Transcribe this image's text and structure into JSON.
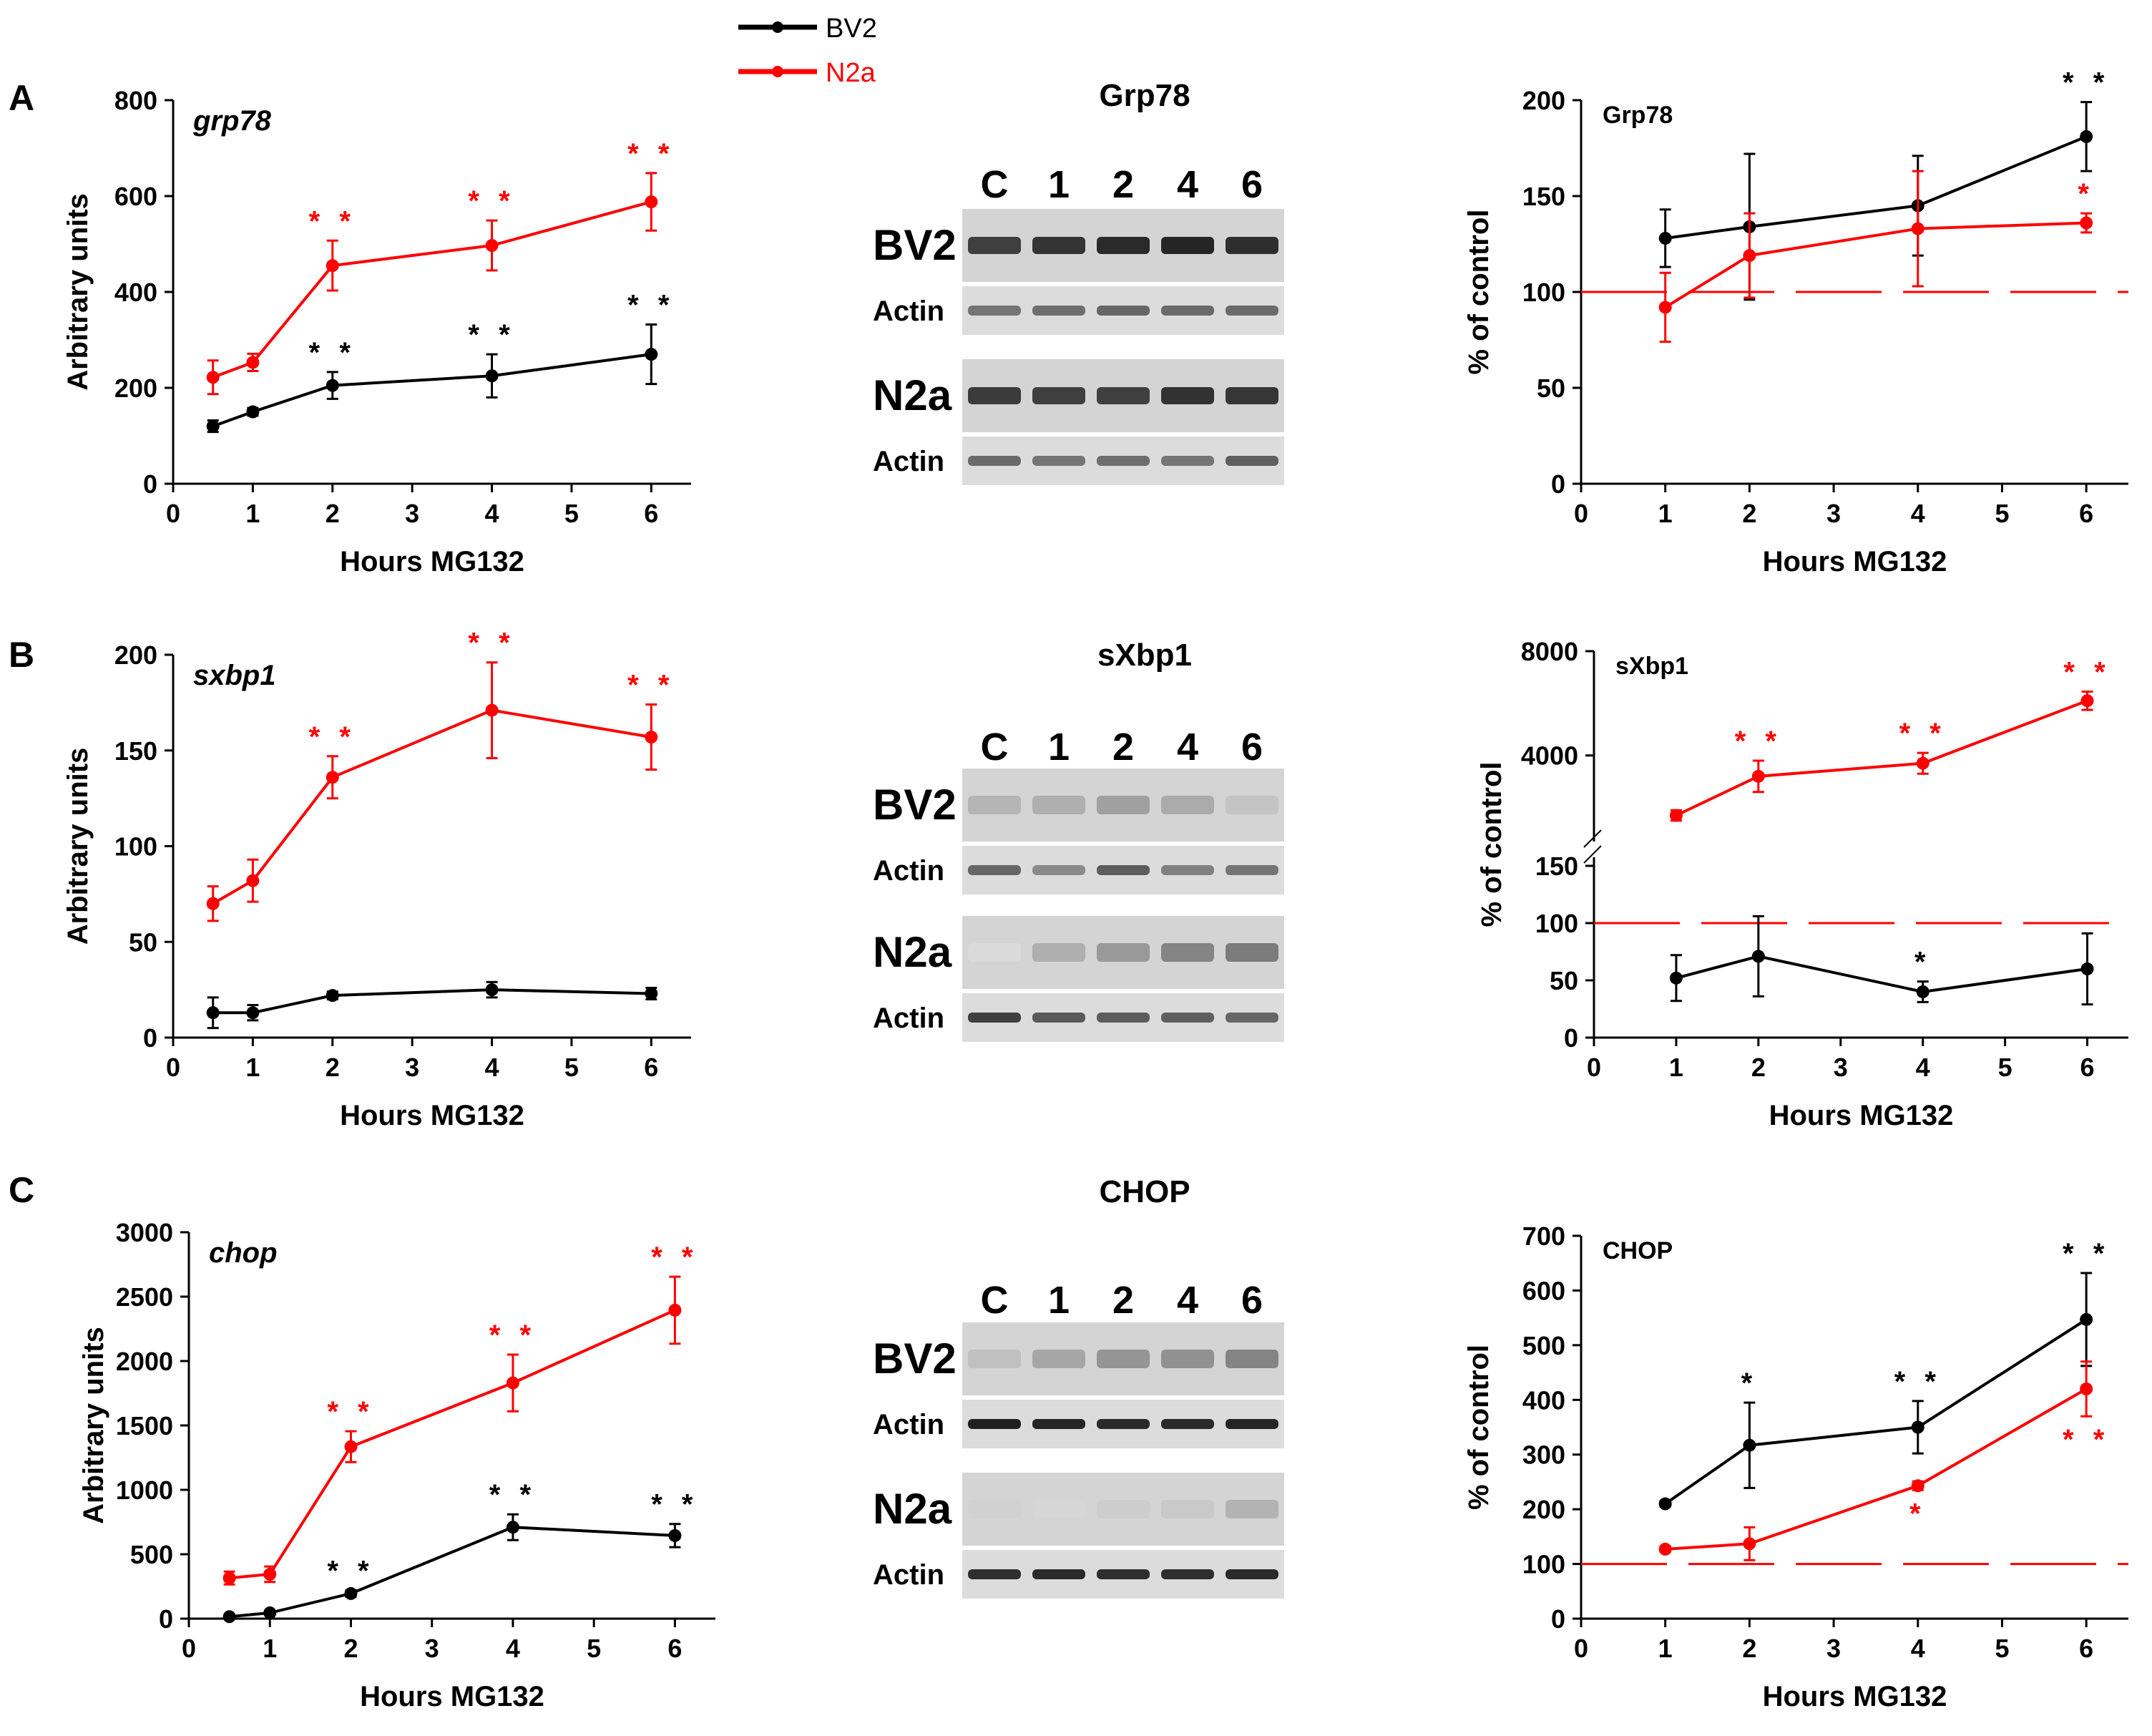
{
  "legend": {
    "items": [
      {
        "name": "BV2",
        "color": "#000000"
      },
      {
        "name": "N2a",
        "color": "#ff0000"
      }
    ]
  },
  "colors": {
    "bv2": "#000000",
    "n2a": "#ff0000"
  },
  "panels": [
    {
      "letter": "A",
      "blot": {
        "title": "Grp78",
        "lanes": [
          "C",
          "1",
          "2",
          "4",
          "6"
        ],
        "rows": [
          {
            "label": "BV2",
            "kind": "target",
            "intensity": [
              0.8,
              0.85,
              0.9,
              0.92,
              0.88
            ]
          },
          {
            "label": "Actin",
            "kind": "actin",
            "intensity": [
              0.55,
              0.58,
              0.62,
              0.6,
              0.6
            ]
          },
          {
            "label": "N2a",
            "kind": "target",
            "intensity": [
              0.82,
              0.8,
              0.8,
              0.86,
              0.84
            ]
          },
          {
            "label": "Actin",
            "kind": "actin",
            "intensity": [
              0.6,
              0.55,
              0.58,
              0.55,
              0.65
            ]
          }
        ]
      }
    },
    {
      "letter": "B",
      "blot": {
        "title": "sXbp1",
        "lanes": [
          "C",
          "1",
          "2",
          "4",
          "6"
        ],
        "rows": [
          {
            "label": "BV2",
            "kind": "faint",
            "intensity": [
              0.25,
              0.28,
              0.35,
              0.3,
              0.18
            ]
          },
          {
            "label": "Actin",
            "kind": "actin",
            "intensity": [
              0.62,
              0.45,
              0.66,
              0.5,
              0.55
            ]
          },
          {
            "label": "N2a",
            "kind": "faint",
            "intensity": [
              0.08,
              0.28,
              0.38,
              0.48,
              0.52
            ]
          },
          {
            "label": "Actin",
            "kind": "actin",
            "intensity": [
              0.8,
              0.68,
              0.66,
              0.65,
              0.62
            ]
          }
        ]
      }
    },
    {
      "letter": "C",
      "blot": {
        "title": "CHOP",
        "lanes": [
          "C",
          "1",
          "2",
          "4",
          "6"
        ],
        "rows": [
          {
            "label": "BV2",
            "kind": "faint",
            "intensity": [
              0.2,
              0.32,
              0.4,
              0.42,
              0.48
            ]
          },
          {
            "label": "Actin",
            "kind": "actin",
            "intensity": [
              0.95,
              0.92,
              0.9,
              0.9,
              0.92
            ]
          },
          {
            "label": "N2a",
            "kind": "faint",
            "intensity": [
              0.12,
              0.1,
              0.14,
              0.16,
              0.26
            ]
          },
          {
            "label": "Actin",
            "kind": "actin",
            "intensity": [
              0.88,
              0.9,
              0.88,
              0.88,
              0.9
            ]
          }
        ]
      }
    }
  ],
  "chart_data": [
    {
      "id": "A-mrna",
      "type": "line",
      "title": "grp78",
      "xlabel": "Hours MG132",
      "ylabel": "Arbitrary units",
      "xlim": [
        0,
        6.5
      ],
      "ylim": [
        0,
        800
      ],
      "xticks": [
        "0",
        "1",
        "2",
        "3",
        "4",
        "5",
        "6"
      ],
      "yticks": [
        "0",
        "200",
        "400",
        "600",
        "800"
      ],
      "series": [
        {
          "name": "BV2",
          "x": [
            0.5,
            1,
            2,
            4,
            6
          ],
          "y": [
            120,
            150,
            205,
            225,
            270
          ],
          "err": [
            12,
            8,
            28,
            45,
            62
          ],
          "stars": [
            "",
            "",
            "**",
            "**",
            "**"
          ]
        },
        {
          "name": "N2a",
          "x": [
            0.5,
            1,
            2,
            4,
            6
          ],
          "y": [
            222,
            253,
            455,
            497,
            588
          ],
          "err": [
            35,
            18,
            52,
            52,
            60
          ],
          "stars": [
            "",
            "",
            "**",
            "**",
            "**"
          ]
        }
      ]
    },
    {
      "id": "A-protein",
      "type": "line",
      "title": "Grp78",
      "xlabel": "Hours MG132",
      "ylabel": "% of control",
      "xlim": [
        0,
        6.5
      ],
      "ylim": [
        0,
        200
      ],
      "xticks": [
        "0",
        "1",
        "2",
        "3",
        "4",
        "5",
        "6"
      ],
      "yticks": [
        "0",
        "50",
        "100",
        "150",
        "200"
      ],
      "reference_line": 100,
      "series": [
        {
          "name": "BV2",
          "x": [
            1,
            2,
            4,
            6
          ],
          "y": [
            128,
            134,
            145,
            181
          ],
          "err": [
            15,
            38,
            26,
            18
          ],
          "stars": [
            "",
            "",
            "",
            "**"
          ]
        },
        {
          "name": "N2a",
          "x": [
            1,
            2,
            4,
            6
          ],
          "y": [
            92,
            119,
            133,
            136
          ],
          "err": [
            18,
            22,
            30,
            5
          ],
          "stars": [
            "",
            "",
            "",
            "*"
          ]
        }
      ]
    },
    {
      "id": "B-mrna",
      "type": "line",
      "title": "sxbp1",
      "xlabel": "Hours MG132",
      "ylabel": "Arbitrary units",
      "xlim": [
        0,
        6.5
      ],
      "ylim": [
        0,
        200
      ],
      "xticks": [
        "0",
        "1",
        "2",
        "3",
        "4",
        "5",
        "6"
      ],
      "yticks": [
        "0",
        "50",
        "100",
        "150",
        "200"
      ],
      "series": [
        {
          "name": "BV2",
          "x": [
            0.5,
            1,
            2,
            4,
            6
          ],
          "y": [
            13,
            13,
            22,
            25,
            23
          ],
          "err": [
            8,
            4,
            2,
            4,
            3
          ],
          "stars": [
            "",
            "",
            "",
            "",
            ""
          ]
        },
        {
          "name": "N2a",
          "x": [
            0.5,
            1,
            2,
            4,
            6
          ],
          "y": [
            70,
            82,
            136,
            171,
            157
          ],
          "err": [
            9,
            11,
            11,
            25,
            17
          ],
          "stars": [
            "",
            "",
            "**",
            "**",
            "**"
          ]
        }
      ]
    },
    {
      "id": "B-protein",
      "type": "line",
      "title": "sXbp1",
      "xlabel": "Hours MG132",
      "ylabel": "% of control",
      "xlim": [
        0,
        6.5
      ],
      "ylim": [
        0,
        8000
      ],
      "axis_break": [
        150,
        1000
      ],
      "xticks": [
        "0",
        "1",
        "2",
        "3",
        "4",
        "5",
        "6"
      ],
      "yticks": [
        "0",
        "50",
        "100",
        "150",
        "4000",
        "8000"
      ],
      "reference_line": 100,
      "series": [
        {
          "name": "BV2",
          "x": [
            1,
            2,
            4,
            6
          ],
          "y": [
            52,
            71,
            40,
            60
          ],
          "err": [
            20,
            35,
            9,
            31
          ],
          "stars": [
            "",
            "",
            "*",
            ""
          ]
        },
        {
          "name": "N2a",
          "x": [
            1,
            2,
            4,
            6
          ],
          "y": [
            1700,
            3200,
            3700,
            6100
          ],
          "err": [
            200,
            600,
            400,
            350
          ],
          "stars": [
            "",
            "**",
            "**",
            "**"
          ]
        }
      ]
    },
    {
      "id": "C-mrna",
      "type": "line",
      "title": "chop",
      "xlabel": "Hours MG132",
      "ylabel": "Arbitrary units",
      "xlim": [
        0,
        6.5
      ],
      "ylim": [
        0,
        3000
      ],
      "xticks": [
        "0",
        "1",
        "2",
        "3",
        "4",
        "5",
        "6"
      ],
      "yticks": [
        "0",
        "500",
        "1000",
        "1500",
        "2000",
        "2500",
        "3000"
      ],
      "series": [
        {
          "name": "BV2",
          "x": [
            0.5,
            1,
            2,
            4,
            6
          ],
          "y": [
            15,
            45,
            195,
            710,
            645
          ],
          "err": [
            10,
            12,
            25,
            100,
            90
          ],
          "stars": [
            "",
            "",
            "**",
            "**",
            "**"
          ]
        },
        {
          "name": "N2a",
          "x": [
            0.5,
            1,
            2,
            4,
            6
          ],
          "y": [
            315,
            345,
            1335,
            1830,
            2395
          ],
          "err": [
            50,
            60,
            120,
            220,
            260
          ],
          "stars": [
            "",
            "",
            "**",
            "**",
            "**"
          ]
        }
      ]
    },
    {
      "id": "C-protein",
      "type": "line",
      "title": "CHOP",
      "xlabel": "Hours MG132",
      "ylabel": "% of control",
      "xlim": [
        0,
        6.5
      ],
      "ylim": [
        0,
        700
      ],
      "xticks": [
        "0",
        "1",
        "2",
        "3",
        "4",
        "5",
        "6"
      ],
      "yticks": [
        "0",
        "100",
        "200",
        "300",
        "400",
        "500",
        "600",
        "700"
      ],
      "reference_line": 100,
      "series": [
        {
          "name": "BV2",
          "x": [
            1,
            2,
            4,
            6
          ],
          "y": [
            210,
            317,
            350,
            547
          ],
          "err": [
            5,
            78,
            48,
            85
          ],
          "stars": [
            "",
            "*",
            "**",
            "**"
          ],
          "star_pos": [
            "",
            "above",
            "above",
            "above"
          ]
        },
        {
          "name": "N2a",
          "x": [
            1,
            2,
            4,
            6
          ],
          "y": [
            127,
            137,
            243,
            420
          ],
          "err": [
            5,
            30,
            8,
            50
          ],
          "stars": [
            "",
            "",
            "*",
            "**"
          ],
          "star_pos": [
            "",
            "",
            "below",
            "below"
          ]
        }
      ]
    }
  ]
}
